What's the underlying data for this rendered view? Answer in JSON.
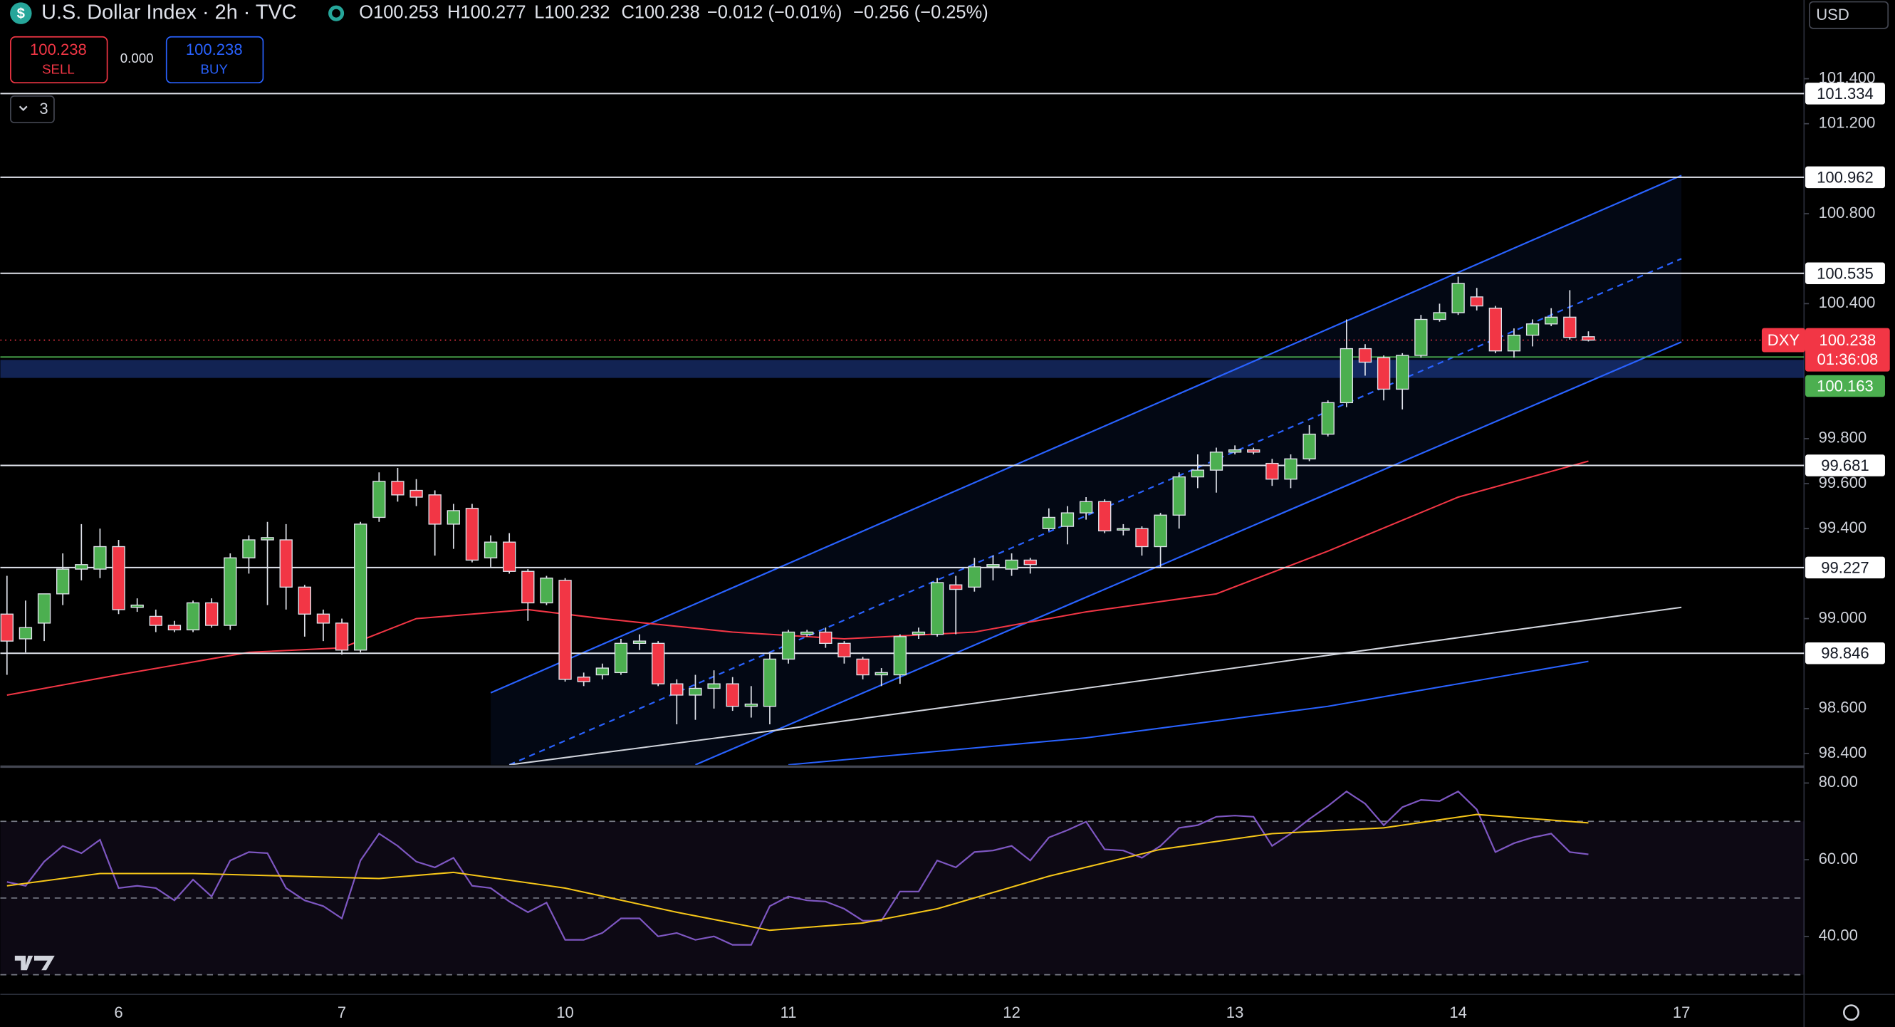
{
  "chart_data": {
    "type": "candlestick",
    "title": "U.S. Dollar Index · 2h · TVC",
    "header": {
      "open": "O100.253",
      "high": "H100.277",
      "low": "L100.232",
      "close": "C100.238",
      "change": "−0.012 (−0.01%)",
      "change2": "−0.256 (−0.25%)"
    },
    "trade": {
      "sell_price": "100.238",
      "sell": "SELL",
      "spread": "0.000",
      "buy_price": "100.238",
      "buy": "BUY"
    },
    "indicators": "3",
    "currency": "USD",
    "categories": [
      null,
      null,
      null,
      null,
      null,
      null,
      "6",
      null,
      null,
      null,
      null,
      null,
      null,
      null,
      null,
      null,
      null,
      null,
      "7",
      null,
      null,
      null,
      null,
      null,
      null,
      null,
      null,
      null,
      null,
      null,
      "10",
      null,
      null,
      null,
      null,
      null,
      null,
      null,
      null,
      null,
      null,
      null,
      "11",
      null,
      null,
      null,
      null,
      null,
      null,
      null,
      null,
      null,
      null,
      null,
      "12",
      null,
      null,
      null,
      null,
      null,
      null,
      null,
      null,
      null,
      null,
      null,
      "13",
      null,
      null,
      null,
      null,
      null,
      null,
      null,
      null,
      null,
      null,
      null,
      "14",
      null,
      null,
      null,
      null,
      null,
      null,
      null,
      null,
      null,
      null,
      null,
      "17"
    ],
    "open": [
      99.02,
      98.91,
      98.98,
      99.11,
      99.22,
      99.22,
      99.32,
      99.05,
      99.01,
      98.97,
      98.95,
      99.07,
      98.97,
      99.27,
      99.35,
      99.35,
      99.14,
      99.02,
      98.98,
      98.86,
      99.45,
      99.61,
      99.57,
      99.55,
      99.42,
      99.49,
      99.27,
      99.34,
      99.21,
      99.07,
      99.17,
      98.74,
      98.75,
      98.76,
      98.89,
      98.89,
      98.71,
      98.66,
      98.69,
      98.71,
      98.61,
      98.61,
      98.82,
      98.93,
      98.94,
      98.89,
      98.82,
      98.75,
      98.75,
      98.93,
      98.93,
      99.15,
      99.14,
      99.23,
      99.22,
      99.26,
      99.4,
      99.41,
      99.47,
      99.52,
      99.4,
      99.4,
      99.32,
      99.46,
      99.63,
      99.66,
      99.74,
      99.75,
      99.69,
      99.62,
      99.71,
      99.82,
      99.96,
      100.2,
      100.16,
      100.02,
      100.17,
      100.33,
      100.36,
      100.43,
      100.38,
      100.19,
      100.26,
      100.31,
      100.34,
      100.253,
      null,
      null,
      null,
      null,
      null
    ],
    "high": [
      99.19,
      99.08,
      99.08,
      99.29,
      99.42,
      99.4,
      99.35,
      99.09,
      99.04,
      98.99,
      99.08,
      99.09,
      99.29,
      99.37,
      99.43,
      99.42,
      99.15,
      99.04,
      99.0,
      99.43,
      99.65,
      99.67,
      99.62,
      99.57,
      99.51,
      99.51,
      99.37,
      99.38,
      99.22,
      99.19,
      99.18,
      98.76,
      98.8,
      98.91,
      98.93,
      98.9,
      98.73,
      98.75,
      98.77,
      98.74,
      98.7,
      98.85,
      98.95,
      98.95,
      98.96,
      98.9,
      98.83,
      98.78,
      98.93,
      98.96,
      99.18,
      99.19,
      99.27,
      99.28,
      99.29,
      99.27,
      99.49,
      99.5,
      99.54,
      99.53,
      99.42,
      99.41,
      99.47,
      99.65,
      99.73,
      99.76,
      99.77,
      99.76,
      99.71,
      99.73,
      99.86,
      99.97,
      100.33,
      100.22,
      100.17,
      100.18,
      100.35,
      100.4,
      100.52,
      100.47,
      100.39,
      100.29,
      100.33,
      100.38,
      100.46,
      100.277,
      null,
      null,
      null,
      null,
      null
    ],
    "low": [
      98.75,
      98.85,
      98.9,
      99.06,
      99.17,
      99.18,
      99.02,
      99.03,
      98.94,
      98.94,
      98.94,
      98.96,
      98.95,
      99.2,
      99.06,
      99.04,
      98.92,
      98.9,
      98.84,
      98.85,
      99.43,
      99.52,
      99.5,
      99.28,
      99.31,
      99.25,
      99.23,
      99.2,
      98.99,
      99.06,
      98.72,
      98.7,
      98.73,
      98.75,
      98.86,
      98.7,
      98.53,
      98.55,
      98.6,
      98.59,
      98.56,
      98.53,
      98.8,
      98.92,
      98.87,
      98.8,
      98.73,
      98.7,
      98.71,
      98.91,
      98.92,
      98.93,
      99.12,
      99.17,
      99.19,
      99.2,
      99.39,
      99.33,
      99.44,
      99.38,
      99.37,
      99.28,
      99.23,
      99.4,
      99.58,
      99.56,
      99.73,
      99.73,
      99.59,
      99.58,
      99.7,
      99.81,
      99.94,
      100.08,
      99.97,
      99.93,
      100.16,
      100.32,
      100.35,
      100.37,
      100.18,
      100.16,
      100.21,
      100.3,
      100.24,
      100.232,
      null,
      null,
      null,
      null,
      null
    ],
    "close": [
      98.9,
      98.96,
      99.11,
      99.22,
      99.24,
      99.32,
      99.04,
      99.06,
      98.97,
      98.95,
      99.07,
      98.97,
      99.27,
      99.35,
      99.36,
      99.14,
      99.02,
      98.98,
      98.86,
      99.42,
      99.61,
      99.55,
      99.54,
      99.42,
      99.48,
      99.26,
      99.34,
      99.21,
      99.07,
      99.18,
      98.73,
      98.72,
      98.78,
      98.89,
      98.9,
      98.71,
      98.66,
      98.69,
      98.71,
      98.61,
      98.62,
      98.82,
      98.94,
      98.94,
      98.89,
      98.83,
      98.75,
      98.76,
      98.92,
      98.94,
      99.16,
      99.13,
      99.23,
      99.24,
      99.26,
      99.24,
      99.45,
      99.47,
      99.52,
      99.39,
      99.4,
      99.32,
      99.46,
      99.63,
      99.66,
      99.74,
      99.75,
      99.74,
      99.62,
      99.71,
      99.82,
      99.96,
      100.2,
      100.14,
      100.02,
      100.17,
      100.33,
      100.36,
      100.49,
      100.39,
      100.19,
      100.26,
      100.31,
      100.34,
      100.25,
      100.238,
      null,
      null,
      null,
      null,
      null
    ],
    "up_color": "#4caf50",
    "down_color": "#f23645",
    "ylim": [
      98.35,
      101.75
    ],
    "yticks": [
      {
        "value": 101.4,
        "label": "101.400"
      },
      {
        "value": 101.2,
        "label": "101.200"
      },
      {
        "value": 100.8,
        "label": "100.800"
      },
      {
        "value": 100.4,
        "label": "100.400"
      },
      {
        "value": 99.8,
        "label": "99.800"
      },
      {
        "value": 99.6,
        "label": "99.600"
      },
      {
        "value": 99.4,
        "label": "99.400"
      },
      {
        "value": 99.0,
        "label": "99.000"
      },
      {
        "value": 98.6,
        "label": "98.600"
      },
      {
        "value": 98.4,
        "label": "98.400"
      }
    ],
    "levels": [
      {
        "value": 101.334,
        "label": "101.334"
      },
      {
        "value": 100.962,
        "label": "100.962"
      },
      {
        "value": 100.535,
        "label": "100.535"
      },
      {
        "value": 99.681,
        "label": "99.681"
      },
      {
        "value": 99.227,
        "label": "99.227"
      },
      {
        "value": 98.846,
        "label": "98.846"
      }
    ],
    "zone": [
      100.07,
      100.15
    ],
    "zone_color": "#1e3a8a",
    "last_price": {
      "symbol": "DXY",
      "value": 100.238,
      "label": "100.238",
      "countdown": "01:36:08",
      "color": "#f23645"
    },
    "mark_price": {
      "value": 100.163,
      "label": "100.163",
      "color": "#4caf50"
    },
    "overlays": [
      {
        "color": "#f23645",
        "points": [
          [
            0,
            98.66
          ],
          [
            6,
            98.75
          ],
          [
            13,
            98.85
          ],
          [
            18,
            98.87
          ],
          [
            22,
            99.0
          ],
          [
            28,
            99.04
          ],
          [
            32,
            99.0
          ],
          [
            39,
            98.94
          ],
          [
            45,
            98.91
          ],
          [
            52,
            98.94
          ],
          [
            58,
            99.03
          ],
          [
            65,
            99.11
          ],
          [
            71,
            99.3
          ],
          [
            78,
            99.54
          ],
          [
            85,
            99.7
          ]
        ]
      },
      {
        "color": "#d1d4dc",
        "points": [
          [
            27,
            98.35
          ],
          [
            41,
            98.5
          ],
          [
            90,
            99.05
          ]
        ]
      },
      {
        "color": "#2962ff",
        "points": [
          [
            42,
            98.35
          ],
          [
            58,
            98.47
          ],
          [
            71,
            98.61
          ],
          [
            85,
            98.81
          ]
        ]
      }
    ],
    "channel": {
      "color": "#2962ff",
      "upper": [
        [
          26,
          98.67
        ],
        [
          90,
          100.97
        ]
      ],
      "middle": [
        [
          27,
          98.35
        ],
        [
          90,
          100.6
        ]
      ],
      "lower": [
        [
          37,
          98.35
        ],
        [
          90,
          100.23
        ]
      ]
    },
    "rsi": {
      "ylim": [
        25.2,
        83.8
      ],
      "yticks": [
        {
          "value": 80,
          "label": "80.00"
        },
        {
          "value": 60,
          "label": "60.00"
        },
        {
          "value": 40,
          "label": "40.00"
        }
      ],
      "levels": [
        70,
        50,
        30
      ],
      "color": "#7e57c2",
      "values": [
        54.2,
        53.2,
        59.5,
        63.6,
        61.7,
        65.2,
        52.6,
        53.2,
        52.6,
        49.4,
        54.8,
        50.4,
        59.8,
        62.0,
        61.7,
        52.6,
        49.4,
        47.9,
        44.7,
        59.8,
        66.8,
        63.6,
        59.5,
        58.0,
        60.5,
        53.2,
        52.6,
        49.1,
        46.3,
        48.8,
        39.1,
        39.1,
        40.9,
        44.7,
        44.7,
        40.0,
        40.9,
        39.1,
        40.0,
        37.8,
        37.8,
        47.9,
        50.4,
        49.4,
        49.1,
        47.2,
        44.1,
        44.1,
        51.7,
        51.7,
        59.8,
        58.0,
        62.0,
        62.4,
        63.6,
        59.8,
        65.8,
        67.7,
        69.9,
        62.7,
        62.4,
        60.5,
        63.6,
        68.3,
        69.0,
        71.2,
        71.5,
        71.2,
        63.6,
        66.8,
        70.6,
        74.0,
        77.8,
        74.6,
        69.0,
        73.7,
        75.6,
        75.3,
        77.8,
        73.1,
        62.0,
        64.3,
        65.8,
        66.8,
        62.0,
        61.4,
        null,
        null,
        null,
        null,
        null
      ],
      "ma": {
        "color": "#f5c518",
        "points": [
          [
            0,
            53.2
          ],
          [
            5,
            56.4
          ],
          [
            10,
            56.4
          ],
          [
            20,
            55.1
          ],
          [
            24,
            56.7
          ],
          [
            30,
            52.6
          ],
          [
            36,
            46.3
          ],
          [
            41,
            41.6
          ],
          [
            46,
            43.5
          ],
          [
            50,
            47.2
          ],
          [
            56,
            55.7
          ],
          [
            62,
            62.7
          ],
          [
            68,
            66.8
          ],
          [
            74,
            68.3
          ],
          [
            79,
            71.8
          ],
          [
            85,
            69.6
          ]
        ]
      }
    }
  }
}
